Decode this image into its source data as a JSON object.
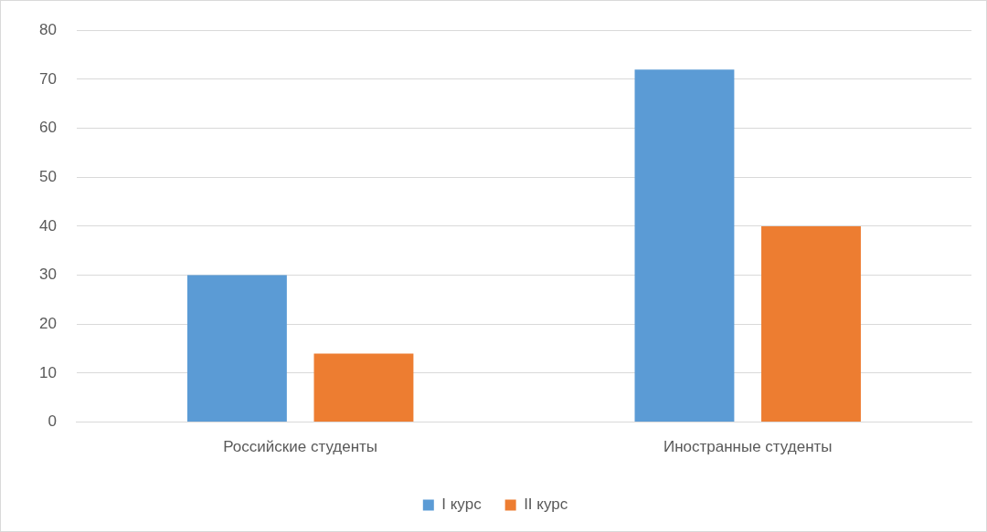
{
  "chart_data": {
    "type": "bar",
    "categories": [
      "Российские студенты",
      "Иностранные студенты"
    ],
    "series": [
      {
        "name": "I курс",
        "color": "#5b9bd5",
        "values": [
          30,
          72
        ]
      },
      {
        "name": "II курс",
        "color": "#ed7d31",
        "values": [
          14,
          40
        ]
      }
    ],
    "ylim": [
      0,
      80
    ],
    "yticks": [
      0,
      10,
      20,
      30,
      40,
      50,
      60,
      70,
      80
    ],
    "grid": "y",
    "legend": "bottom"
  }
}
